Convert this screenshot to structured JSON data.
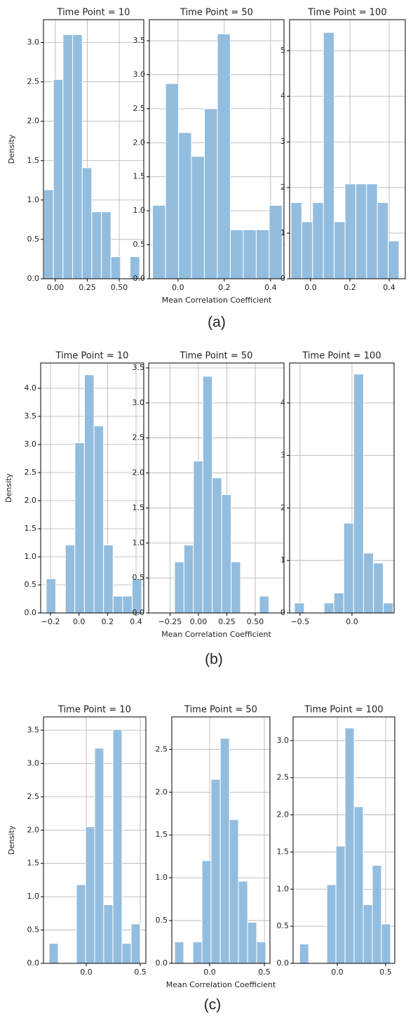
{
  "chart_data": [
    {
      "type": "histogram",
      "title": "Time Point = 10",
      "ylabel": "Density",
      "color": "#93bddf",
      "grid": true,
      "bins": [
        -0.09,
        -0.015,
        0.06,
        0.135,
        0.21,
        0.285,
        0.36,
        0.435,
        0.51,
        0.585,
        0.66
      ],
      "values": [
        1.13,
        2.53,
        3.1,
        3.1,
        1.41,
        0.85,
        0.85,
        0.28,
        0,
        0.28
      ],
      "xlim": [
        -0.093,
        0.692
      ],
      "ylim": [
        0,
        3.29
      ],
      "xticks": [
        {
          "value": 0,
          "label": "0.00"
        },
        0.25,
        {
          "value": 0.5,
          "label": "0.50"
        }
      ],
      "yticks": [
        {
          "value": 0,
          "label": "0.0"
        },
        0.5,
        {
          "value": 1,
          "label": "1.0"
        },
        1.5,
        {
          "value": 2,
          "label": "2.0"
        },
        2.5,
        {
          "value": 3,
          "label": "3.0"
        }
      ]
    },
    {
      "type": "histogram",
      "title": "Time Point = 50",
      "xlabel": "Mean Correlation Coefficient",
      "color": "#93bddf",
      "grid": true,
      "bins": [
        -0.11,
        -0.054,
        0.002,
        0.058,
        0.114,
        0.17,
        0.226,
        0.282,
        0.338,
        0.394,
        0.45
      ],
      "values": [
        1.08,
        2.87,
        2.15,
        1.8,
        2.5,
        3.6,
        0.72,
        0.72,
        0.72,
        1.08
      ],
      "xlim": [
        -0.124,
        0.458
      ],
      "ylim": [
        0,
        3.81
      ],
      "xticks": [
        {
          "value": 0,
          "label": "0.0"
        },
        0.2,
        0.4
      ],
      "yticks": [
        {
          "value": 0,
          "label": "0.0"
        },
        0.5,
        {
          "value": 1,
          "label": "1.0"
        },
        1.5,
        {
          "value": 2,
          "label": "2.0"
        },
        2.5,
        {
          "value": 3,
          "label": "3.0"
        },
        3.5
      ]
    },
    {
      "type": "histogram",
      "title": "Time Point = 100",
      "color": "#93bddf",
      "grid": true,
      "bins": [
        -0.1,
        -0.045,
        0.01,
        0.065,
        0.12,
        0.175,
        0.23,
        0.285,
        0.34,
        0.395,
        0.45
      ],
      "values": [
        1.67,
        1.25,
        1.67,
        5.4,
        1.25,
        2.08,
        2.08,
        2.08,
        1.67,
        0.83
      ],
      "xlim": [
        -0.107,
        0.482
      ],
      "ylim": [
        0,
        5.68
      ],
      "xticks": [
        {
          "value": 0,
          "label": "0.0"
        },
        0.2,
        0.4
      ],
      "yticks": [
        0,
        1,
        2,
        3,
        4,
        5
      ]
    },
    {
      "type": "histogram",
      "title": "Time Point = 10",
      "ylabel": "Density",
      "color": "#93bddf",
      "grid": true,
      "bins": [
        -0.23,
        -0.163,
        -0.096,
        -0.029,
        0.038,
        0.105,
        0.172,
        0.239,
        0.306,
        0.373,
        0.44
      ],
      "values": [
        0.61,
        0,
        1.21,
        3.03,
        4.24,
        3.33,
        1.21,
        0.3,
        0.3,
        0.61
      ],
      "xlim": [
        -0.269,
        0.454
      ],
      "ylim": [
        0,
        4.45
      ],
      "xticks": [
        {
          "value": -0.2,
          "label": "−0.2"
        },
        {
          "value": 0,
          "label": "0.0"
        },
        0.2,
        0.4
      ],
      "yticks": [
        {
          "value": 0,
          "label": "0.0"
        },
        0.5,
        {
          "value": 1,
          "label": "1.0"
        },
        1.5,
        {
          "value": 2,
          "label": "2.0"
        },
        2.5,
        {
          "value": 3,
          "label": "3.0"
        },
        3.5,
        {
          "value": 4,
          "label": "4.0"
        }
      ]
    },
    {
      "type": "histogram",
      "title": "Time Point = 50",
      "xlabel": "Mean Correlation Coefficient",
      "color": "#93bddf",
      "grid": true,
      "bins": [
        -0.21,
        -0.127,
        -0.044,
        0.039,
        0.122,
        0.205,
        0.288,
        0.371,
        0.454,
        0.537,
        0.62
      ],
      "values": [
        0.73,
        0.97,
        2.17,
        3.38,
        1.93,
        1.69,
        0.73,
        0,
        0,
        0.24
      ],
      "xlim": [
        -0.438,
        0.753
      ],
      "ylim": [
        0,
        3.57
      ],
      "xticks": [
        {
          "value": -0.25,
          "label": "−0.25"
        },
        {
          "value": 0,
          "label": "0.00"
        },
        0.25,
        {
          "value": 0.5,
          "label": "0.50"
        }
      ],
      "yticks": [
        {
          "value": 0,
          "label": "0.0"
        },
        0.5,
        {
          "value": 1,
          "label": "1.0"
        },
        1.5,
        {
          "value": 2,
          "label": "2.0"
        },
        2.5,
        {
          "value": 3,
          "label": "3.0"
        },
        3.5
      ]
    },
    {
      "type": "histogram",
      "title": "Time Point = 100",
      "color": "#93bddf",
      "grid": true,
      "bins": [
        -0.554,
        -0.459,
        -0.364,
        -0.269,
        -0.174,
        -0.079,
        0.016,
        0.111,
        0.206,
        0.301,
        0.396
      ],
      "values": [
        0.19,
        0,
        0,
        0.19,
        0.38,
        1.71,
        4.55,
        1.14,
        0.95,
        0.19
      ],
      "xlim": [
        -0.6,
        0.405
      ],
      "ylim": [
        0,
        4.76
      ],
      "xticks": [
        {
          "value": -0.5,
          "label": "−0.5"
        },
        {
          "value": 0,
          "label": "0.0"
        }
      ],
      "yticks": [
        0,
        1,
        2,
        3,
        4
      ]
    },
    {
      "type": "histogram",
      "title": "Time Point = 10",
      "ylabel": "Density",
      "color": "#93bddf",
      "grid": true,
      "bins": [
        -0.344,
        -0.26,
        -0.175,
        -0.091,
        -0.006,
        0.078,
        0.162,
        0.247,
        0.331,
        0.416,
        0.5
      ],
      "values": [
        0.3,
        0,
        0,
        1.18,
        2.05,
        3.23,
        0.88,
        3.51,
        0.3,
        0.59
      ],
      "xlim": [
        -0.396,
        0.552
      ],
      "ylim": [
        0,
        3.7
      ],
      "xticks": [
        {
          "value": 0,
          "label": "0.0"
        },
        0.5
      ],
      "yticks": [
        {
          "value": 0,
          "label": "0.0"
        },
        0.5,
        {
          "value": 1,
          "label": "1.0"
        },
        1.5,
        {
          "value": 2,
          "label": "2.0"
        },
        2.5,
        {
          "value": 3,
          "label": "3.0"
        },
        3.5
      ]
    },
    {
      "type": "histogram",
      "title": "Time Point = 50",
      "xlabel": "Mean Correlation Coefficient",
      "color": "#93bddf",
      "grid": true,
      "bins": [
        -0.32,
        -0.237,
        -0.153,
        -0.07,
        0.013,
        0.097,
        0.18,
        0.263,
        0.347,
        0.43,
        0.513
      ],
      "values": [
        0.25,
        0,
        0.25,
        1.2,
        2.15,
        2.63,
        1.68,
        0.96,
        0.48,
        0.25
      ],
      "xlim": [
        -0.346,
        0.551
      ],
      "ylim": [
        0,
        2.88
      ],
      "xticks": [
        {
          "value": 0,
          "label": "0.0"
        },
        0.5
      ],
      "yticks": [
        {
          "value": 0,
          "label": "0.0"
        },
        0.5,
        {
          "value": 1,
          "label": "1.0"
        },
        1.5,
        {
          "value": 2,
          "label": "2.0"
        },
        2.5
      ]
    },
    {
      "type": "histogram",
      "title": "Time Point = 100",
      "color": "#93bddf",
      "grid": true,
      "bins": [
        -0.39,
        -0.296,
        -0.202,
        -0.108,
        -0.014,
        0.08,
        0.174,
        0.268,
        0.362,
        0.456,
        0.55
      ],
      "values": [
        0.26,
        0,
        0,
        1.06,
        1.58,
        3.17,
        2.11,
        0.79,
        1.32,
        0.53
      ],
      "xlim": [
        -0.457,
        0.594
      ],
      "ylim": [
        0,
        3.32
      ],
      "xticks": [
        {
          "value": 0,
          "label": "0.0"
        },
        0.5
      ],
      "yticks": [
        {
          "value": 0,
          "label": "0.0"
        },
        0.5,
        {
          "value": 1,
          "label": "1.0"
        },
        1.5,
        {
          "value": 2,
          "label": "2.0"
        },
        2.5,
        {
          "value": 3,
          "label": "3.0"
        }
      ]
    }
  ],
  "figure_labels": [
    "(a)",
    "(b)",
    "(c)"
  ]
}
